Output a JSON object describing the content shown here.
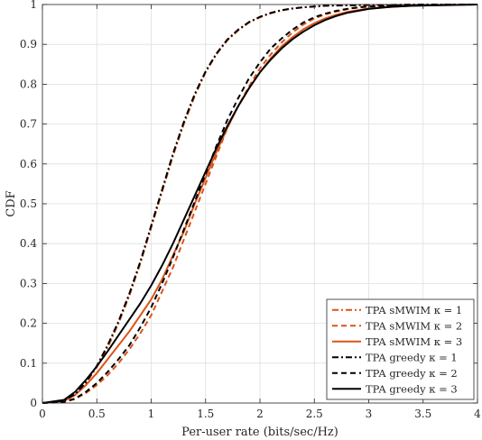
{
  "chart_data": {
    "type": "line",
    "title": "",
    "xlabel": "Per-user rate (bits/sec/Hz)",
    "ylabel": "CDF",
    "xlim": [
      0,
      4
    ],
    "ylim": [
      0,
      1
    ],
    "xticks": [
      "0",
      "0.5",
      "1",
      "1.5",
      "2",
      "2.5",
      "3",
      "3.5",
      "4"
    ],
    "yticks": [
      "0",
      "0.1",
      "0.2",
      "0.3",
      "0.4",
      "0.5",
      "0.6",
      "0.7",
      "0.8",
      "0.9",
      "1"
    ],
    "grid": true,
    "legend_position": "bottom-right",
    "series": [
      {
        "name": "TPA sMWIM κ = 1",
        "color": "#D95319",
        "dash": "dashdot",
        "x": [
          0,
          0.1,
          0.2,
          0.3,
          0.4,
          0.5,
          0.6,
          0.7,
          0.8,
          0.9,
          1.0,
          1.1,
          1.2,
          1.3,
          1.4,
          1.5,
          1.6,
          1.7,
          1.8,
          1.9,
          2.0,
          2.1,
          2.2,
          2.3,
          2.4,
          2.5,
          2.6,
          2.8,
          3.0,
          3.2,
          3.5,
          4.0
        ],
        "y": [
          0,
          0.002,
          0.006,
          0.02,
          0.05,
          0.09,
          0.14,
          0.2,
          0.27,
          0.35,
          0.44,
          0.53,
          0.62,
          0.7,
          0.77,
          0.83,
          0.875,
          0.91,
          0.935,
          0.955,
          0.968,
          0.978,
          0.985,
          0.99,
          0.993,
          0.995,
          0.997,
          0.998,
          0.999,
          0.999,
          1.0,
          1.0
        ]
      },
      {
        "name": "TPA sMWIM κ = 2",
        "color": "#D95319",
        "dash": "dashed",
        "x": [
          0,
          0.2,
          0.3,
          0.4,
          0.5,
          0.6,
          0.7,
          0.8,
          0.9,
          1.0,
          1.1,
          1.2,
          1.3,
          1.4,
          1.5,
          1.6,
          1.7,
          1.8,
          1.9,
          2.0,
          2.1,
          2.2,
          2.3,
          2.4,
          2.5,
          2.6,
          2.7,
          2.8,
          2.9,
          3.0,
          3.2,
          3.4,
          3.6,
          4.0
        ],
        "y": [
          0,
          0.003,
          0.01,
          0.025,
          0.045,
          0.07,
          0.1,
          0.135,
          0.175,
          0.22,
          0.28,
          0.34,
          0.41,
          0.48,
          0.55,
          0.62,
          0.69,
          0.745,
          0.795,
          0.84,
          0.875,
          0.905,
          0.93,
          0.95,
          0.965,
          0.975,
          0.982,
          0.988,
          0.992,
          0.995,
          0.997,
          0.998,
          0.999,
          1.0
        ]
      },
      {
        "name": "TPA sMWIM κ = 3",
        "color": "#D95319",
        "dash": "solid",
        "x": [
          0,
          0.2,
          0.3,
          0.4,
          0.5,
          0.6,
          0.7,
          0.8,
          0.9,
          1.0,
          1.1,
          1.2,
          1.3,
          1.4,
          1.5,
          1.6,
          1.7,
          1.8,
          1.9,
          2.0,
          2.1,
          2.2,
          2.3,
          2.4,
          2.5,
          2.6,
          2.7,
          2.8,
          3.0,
          3.2,
          3.4,
          3.6,
          3.8,
          4.0
        ],
        "y": [
          0,
          0.005,
          0.02,
          0.045,
          0.075,
          0.11,
          0.145,
          0.18,
          0.22,
          0.26,
          0.31,
          0.37,
          0.43,
          0.5,
          0.565,
          0.63,
          0.69,
          0.745,
          0.79,
          0.83,
          0.865,
          0.895,
          0.918,
          0.938,
          0.953,
          0.965,
          0.974,
          0.981,
          0.99,
          0.994,
          0.997,
          0.998,
          0.999,
          1.0
        ]
      },
      {
        "name": "TPA greedy κ = 1",
        "color": "#000000",
        "dash": "dashdot",
        "x": [
          0,
          0.1,
          0.2,
          0.3,
          0.4,
          0.5,
          0.6,
          0.7,
          0.8,
          0.9,
          1.0,
          1.1,
          1.2,
          1.3,
          1.4,
          1.5,
          1.6,
          1.7,
          1.8,
          1.9,
          2.0,
          2.1,
          2.2,
          2.3,
          2.4,
          2.5,
          2.6,
          2.8,
          3.0,
          3.2,
          3.5,
          4.0
        ],
        "y": [
          0,
          0.002,
          0.007,
          0.022,
          0.052,
          0.093,
          0.145,
          0.205,
          0.275,
          0.355,
          0.445,
          0.535,
          0.625,
          0.705,
          0.775,
          0.832,
          0.877,
          0.912,
          0.937,
          0.956,
          0.969,
          0.979,
          0.986,
          0.99,
          0.993,
          0.995,
          0.997,
          0.998,
          0.999,
          0.999,
          1.0,
          1.0
        ]
      },
      {
        "name": "TPA greedy κ = 2",
        "color": "#000000",
        "dash": "dashed",
        "x": [
          0,
          0.2,
          0.3,
          0.4,
          0.5,
          0.6,
          0.7,
          0.8,
          0.9,
          1.0,
          1.1,
          1.2,
          1.3,
          1.4,
          1.5,
          1.6,
          1.7,
          1.8,
          1.9,
          2.0,
          2.1,
          2.2,
          2.3,
          2.4,
          2.5,
          2.6,
          2.7,
          2.8,
          2.9,
          3.0,
          3.2,
          3.4,
          3.6,
          4.0
        ],
        "y": [
          0,
          0.003,
          0.011,
          0.028,
          0.05,
          0.078,
          0.11,
          0.145,
          0.19,
          0.24,
          0.3,
          0.365,
          0.435,
          0.505,
          0.575,
          0.645,
          0.71,
          0.765,
          0.815,
          0.855,
          0.89,
          0.915,
          0.937,
          0.955,
          0.968,
          0.977,
          0.984,
          0.989,
          0.993,
          0.995,
          0.997,
          0.998,
          0.999,
          1.0
        ]
      },
      {
        "name": "TPA greedy κ = 3",
        "color": "#000000",
        "dash": "solid",
        "x": [
          0,
          0.2,
          0.3,
          0.4,
          0.5,
          0.6,
          0.7,
          0.8,
          0.9,
          1.0,
          1.1,
          1.2,
          1.3,
          1.4,
          1.5,
          1.6,
          1.7,
          1.8,
          1.9,
          2.0,
          2.1,
          2.2,
          2.3,
          2.4,
          2.5,
          2.6,
          2.7,
          2.8,
          3.0,
          3.2,
          3.4,
          3.6,
          3.8,
          4.0
        ],
        "y": [
          0,
          0.008,
          0.028,
          0.058,
          0.092,
          0.13,
          0.17,
          0.21,
          0.25,
          0.295,
          0.345,
          0.4,
          0.46,
          0.52,
          0.58,
          0.64,
          0.695,
          0.745,
          0.79,
          0.83,
          0.862,
          0.89,
          0.913,
          0.932,
          0.948,
          0.961,
          0.971,
          0.979,
          0.989,
          0.994,
          0.997,
          0.998,
          0.999,
          1.0
        ]
      }
    ]
  }
}
